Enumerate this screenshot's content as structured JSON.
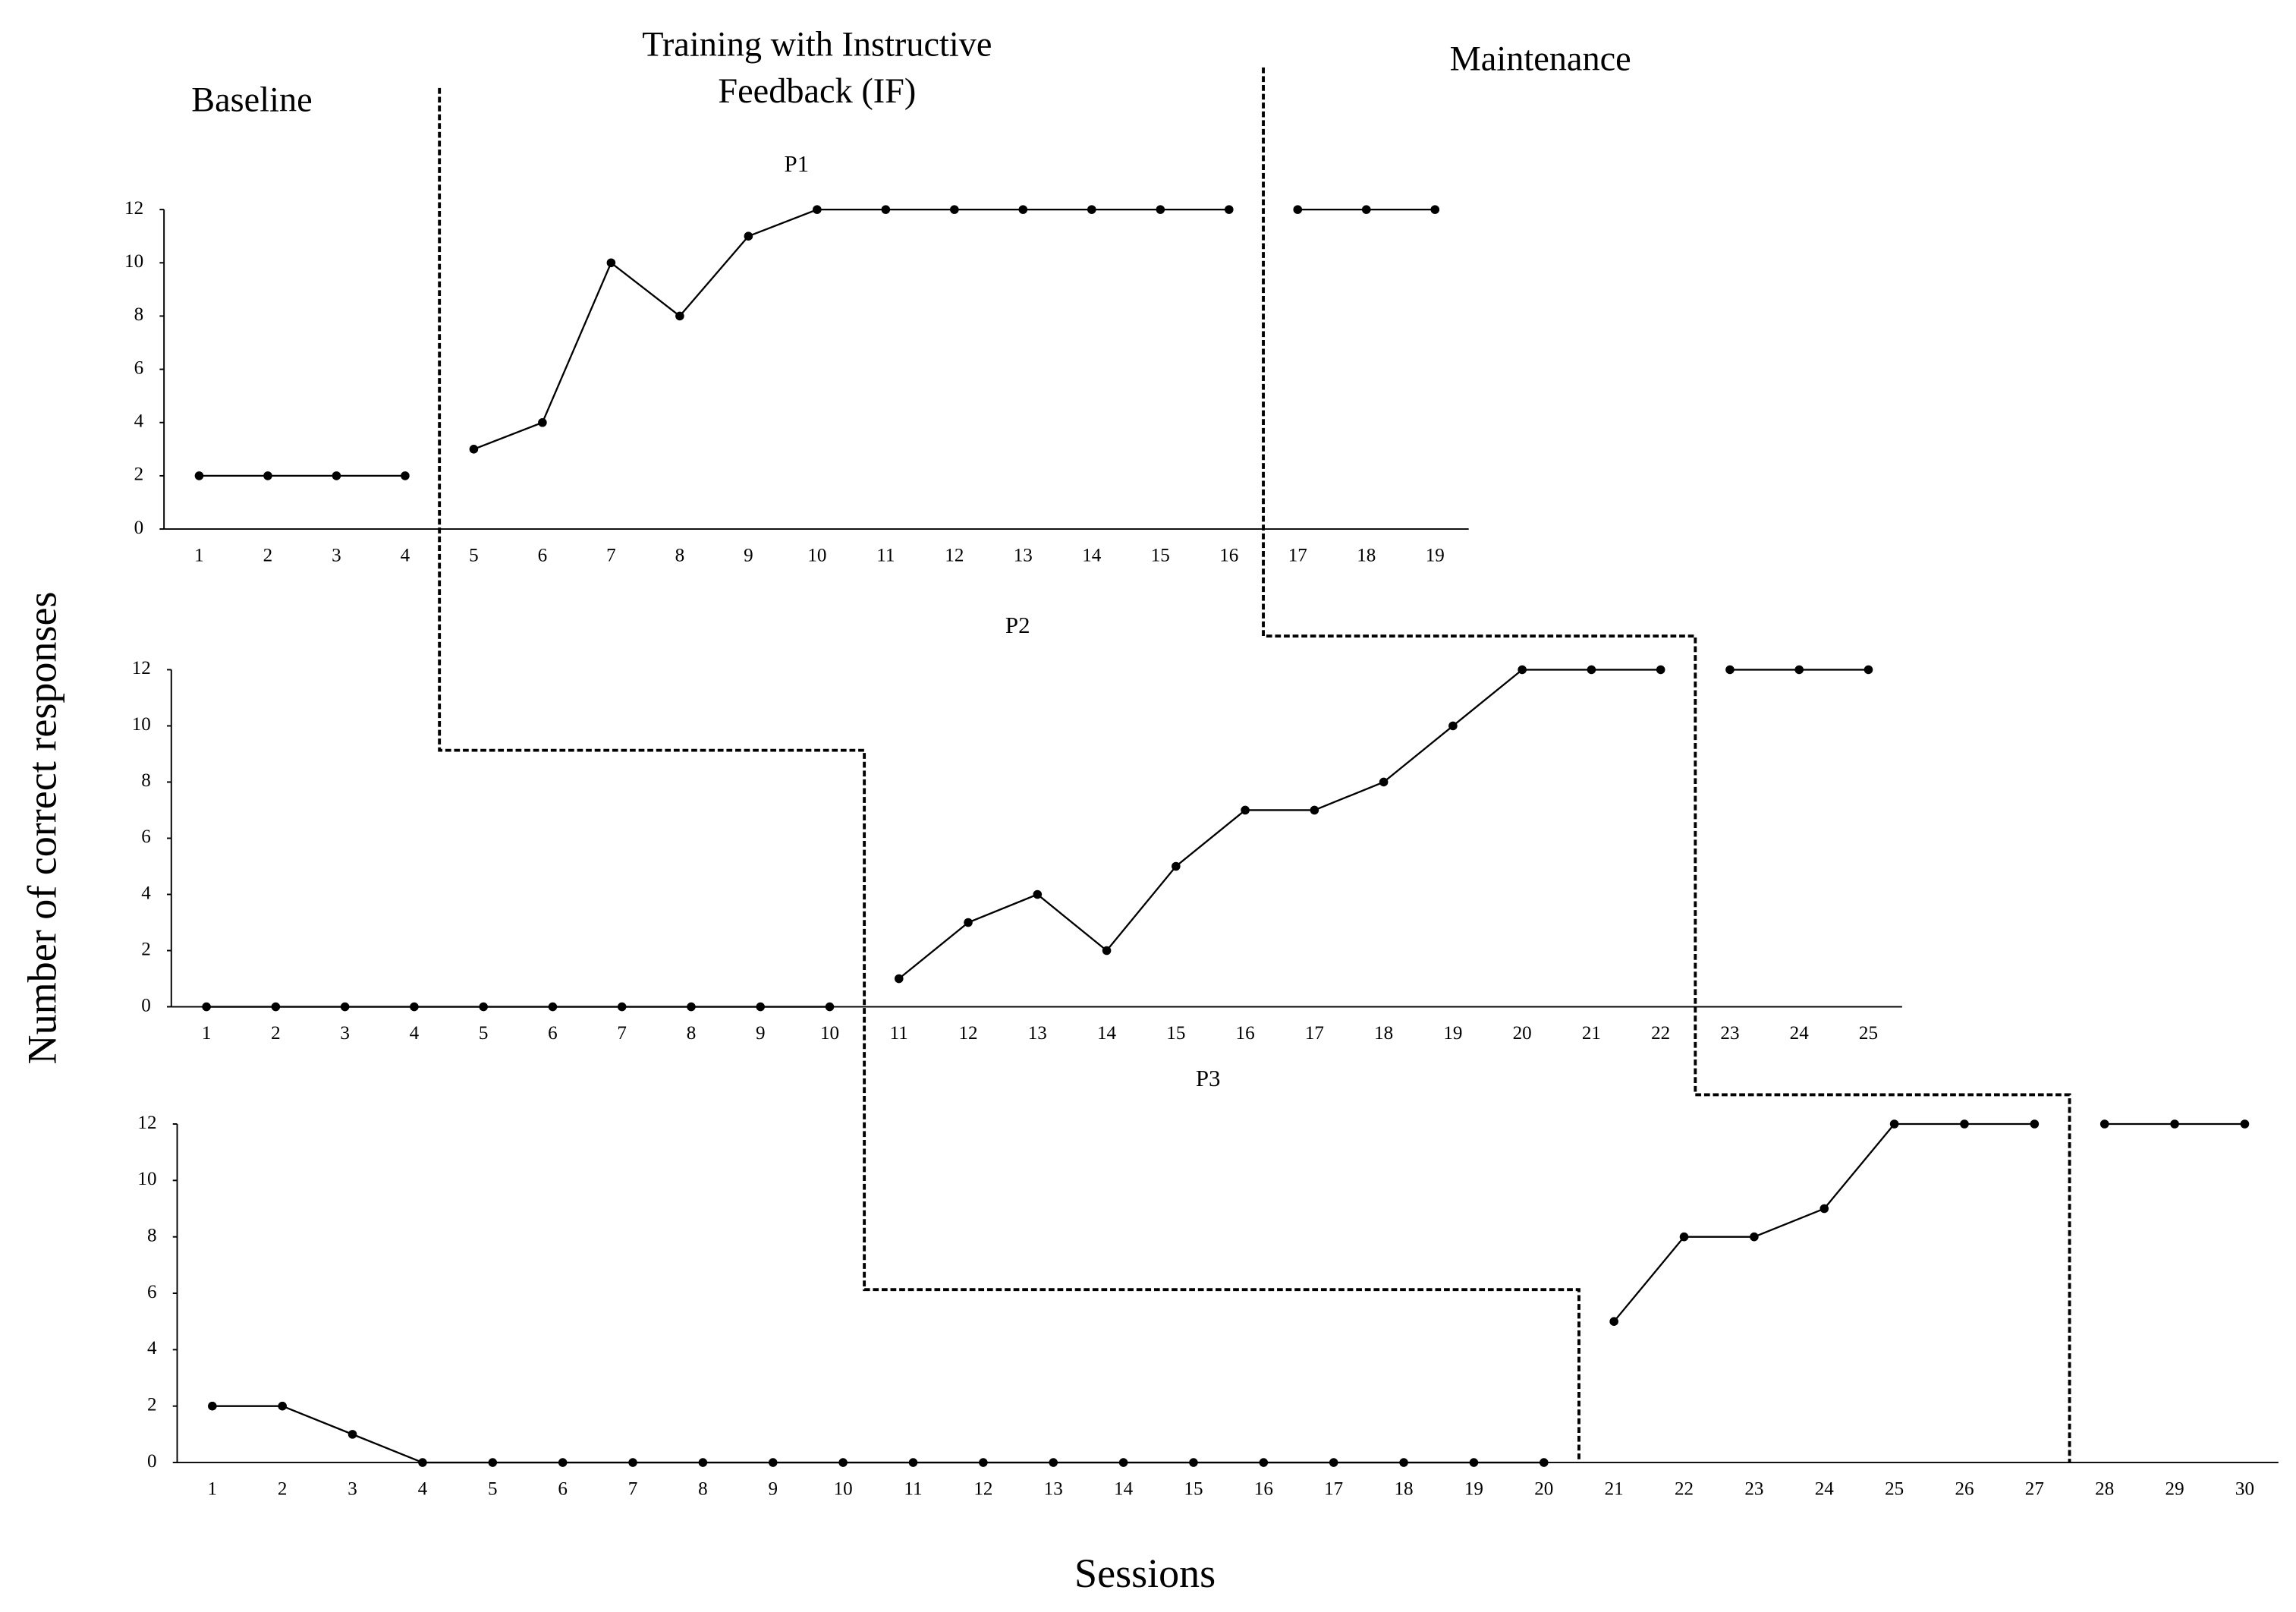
{
  "phase_labels": {
    "baseline": "Baseline",
    "training": [
      "Training  with Instructive",
      "Feedback (IF)"
    ],
    "maintenance": "Maintenance"
  },
  "ylabel": "Number of correct responses",
  "xlabel": "Sessions",
  "chart_data": [
    {
      "type": "line",
      "title": "P1",
      "categories": [
        1,
        2,
        3,
        4,
        5,
        6,
        7,
        8,
        9,
        10,
        11,
        12,
        13,
        14,
        15,
        16,
        17,
        18,
        19
      ],
      "series": [
        {
          "color": "#000000",
          "values": [
            2,
            2,
            2,
            2,
            null,
            null,
            null,
            null,
            null,
            null,
            null,
            null,
            null,
            null,
            null,
            null,
            null,
            null,
            null
          ]
        },
        {
          "color": "#000000",
          "values": [
            null,
            null,
            null,
            null,
            3,
            4,
            10,
            8,
            11,
            12,
            12,
            12,
            12,
            12,
            12,
            12,
            null,
            null,
            null
          ]
        },
        {
          "color": "#000000",
          "values": [
            null,
            null,
            null,
            null,
            null,
            null,
            null,
            null,
            null,
            null,
            null,
            null,
            null,
            null,
            null,
            null,
            12,
            12,
            12
          ]
        }
      ],
      "ylim": [
        0,
        12
      ],
      "yticks": [
        0,
        2,
        4,
        6,
        8,
        10,
        12
      ],
      "grid": false
    },
    {
      "type": "line",
      "title": "P2",
      "categories": [
        1,
        2,
        3,
        4,
        5,
        6,
        7,
        8,
        9,
        10,
        11,
        12,
        13,
        14,
        15,
        16,
        17,
        18,
        19,
        20,
        21,
        22,
        23,
        24,
        25
      ],
      "series": [
        {
          "color": "#000000",
          "values": [
            0,
            0,
            0,
            0,
            0,
            0,
            0,
            0,
            0,
            0,
            null,
            null,
            null,
            null,
            null,
            null,
            null,
            null,
            null,
            null,
            null,
            null,
            null,
            null,
            null
          ]
        },
        {
          "color": "#000000",
          "values": [
            null,
            null,
            null,
            null,
            null,
            null,
            null,
            null,
            null,
            null,
            1,
            3,
            4,
            2,
            5,
            7,
            7,
            8,
            10,
            12,
            12,
            12,
            null,
            null,
            null
          ]
        },
        {
          "color": "#000000",
          "values": [
            null,
            null,
            null,
            null,
            null,
            null,
            null,
            null,
            null,
            null,
            null,
            null,
            null,
            null,
            null,
            null,
            null,
            null,
            null,
            null,
            null,
            null,
            12,
            12,
            12
          ]
        }
      ],
      "ylim": [
        0,
        12
      ],
      "yticks": [
        0,
        2,
        4,
        6,
        8,
        10,
        12
      ],
      "grid": false
    },
    {
      "type": "line",
      "title": "P3",
      "categories": [
        1,
        2,
        3,
        4,
        5,
        6,
        7,
        8,
        9,
        10,
        11,
        12,
        13,
        14,
        15,
        16,
        17,
        18,
        19,
        20,
        21,
        22,
        23,
        24,
        25,
        26,
        27,
        28,
        29,
        30
      ],
      "series": [
        {
          "color": "#000000",
          "values": [
            2,
            2,
            1,
            0,
            0,
            0,
            0,
            0,
            0,
            0,
            0,
            0,
            0,
            0,
            0,
            0,
            0,
            0,
            0,
            0,
            null,
            null,
            null,
            null,
            null,
            null,
            null,
            null,
            null,
            null
          ]
        },
        {
          "color": "#000000",
          "values": [
            null,
            null,
            null,
            null,
            null,
            null,
            null,
            null,
            null,
            null,
            null,
            null,
            null,
            null,
            null,
            null,
            null,
            null,
            null,
            null,
            5,
            8,
            8,
            9,
            12,
            12,
            12,
            null,
            null,
            null
          ]
        },
        {
          "color": "#000000",
          "values": [
            null,
            null,
            null,
            null,
            null,
            null,
            null,
            null,
            null,
            null,
            null,
            null,
            null,
            null,
            null,
            null,
            null,
            null,
            null,
            null,
            null,
            null,
            null,
            null,
            null,
            null,
            null,
            12,
            12,
            12
          ]
        }
      ],
      "ylim": [
        0,
        12
      ],
      "yticks": [
        0,
        2,
        4,
        6,
        8,
        10,
        12
      ],
      "grid": false
    }
  ]
}
